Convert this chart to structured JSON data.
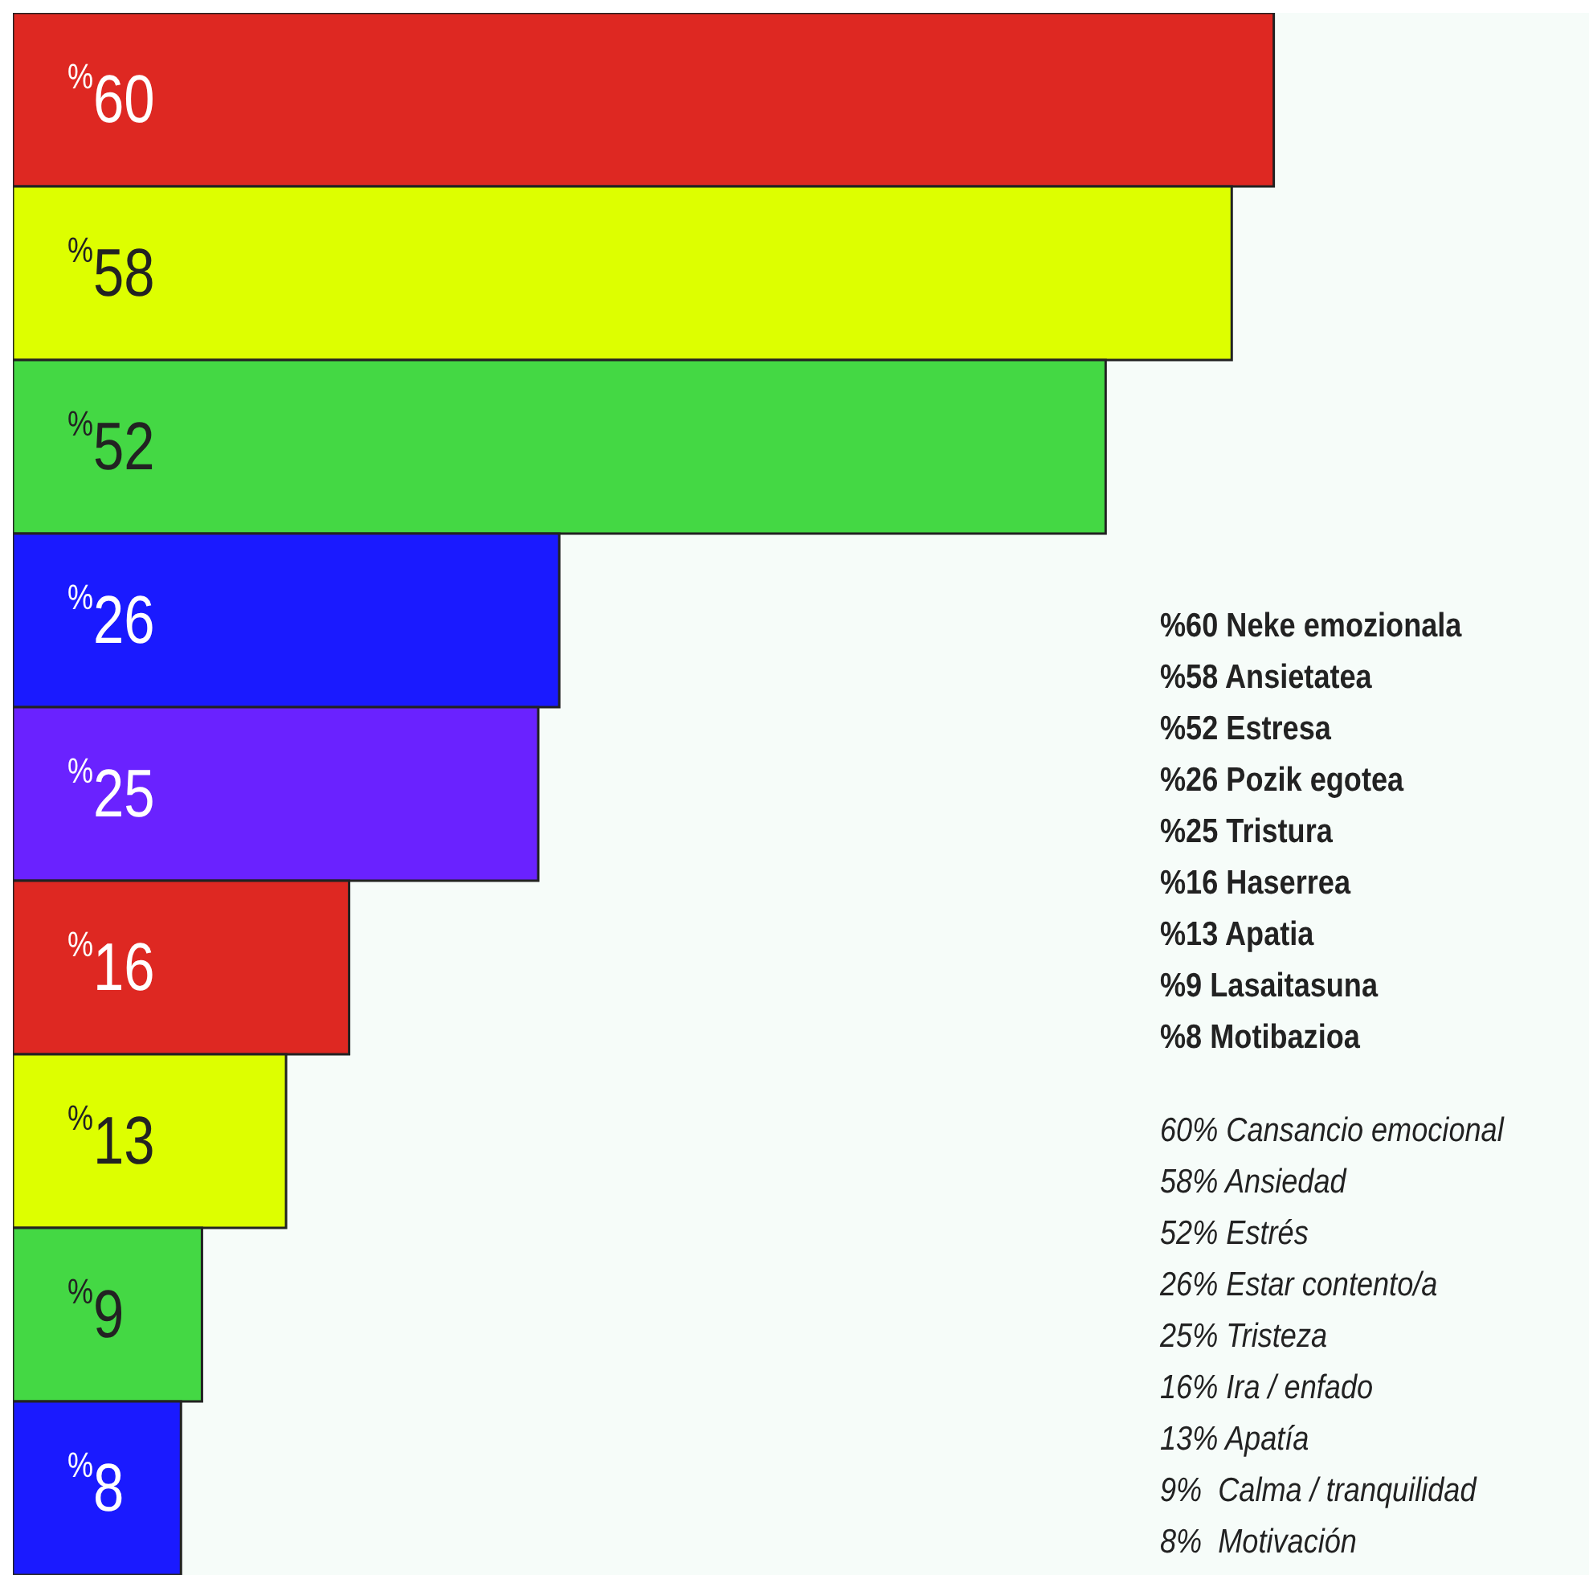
{
  "chart_data": {
    "type": "bar",
    "orientation": "horizontal",
    "categories": [
      null,
      null,
      null,
      null,
      null,
      null,
      null,
      null,
      null
    ],
    "values": [
      60,
      58,
      52,
      26,
      25,
      16,
      13,
      9,
      8
    ],
    "colors": [
      "#de2822",
      "#ddff00",
      "#44d844",
      "#1a1aff",
      "#6a22ff",
      "#de2822",
      "#ddff00",
      "#44d844",
      "#1a1aff"
    ],
    "value_labels": [
      "$^{%}$60",
      "$^{%}$58",
      "$^{%}$52",
      "$^{%}$26",
      "$^{%}$25",
      "$^{%}$16",
      "$^{%}$13",
      "$^{%}$9",
      "$^{%}$8"
    ],
    "xlim": [
      0,
      75
    ],
    "tick_labels": false,
    "grid": false,
    "legend": false,
    "annotations": [
      "%60 Neke emozionala",
      "%58 Ansietatea",
      "%52 Estresa",
      "%26 Pozik egotea",
      "%25 Tristura",
      "%16 Haserrea",
      "%13 Apatia",
      "%9 Lasaitasuna",
      "%8 Motibazioa",
      "60% Cansancio emocional",
      "58% Ansiedad",
      "52% Estrés",
      "26% Estar contento/a",
      "25% Tristeza",
      "16% Ira / enfado",
      "13% Apatía",
      "9%  Calma / tranquilidad",
      "8%  Motivación"
    ]
  }
}
